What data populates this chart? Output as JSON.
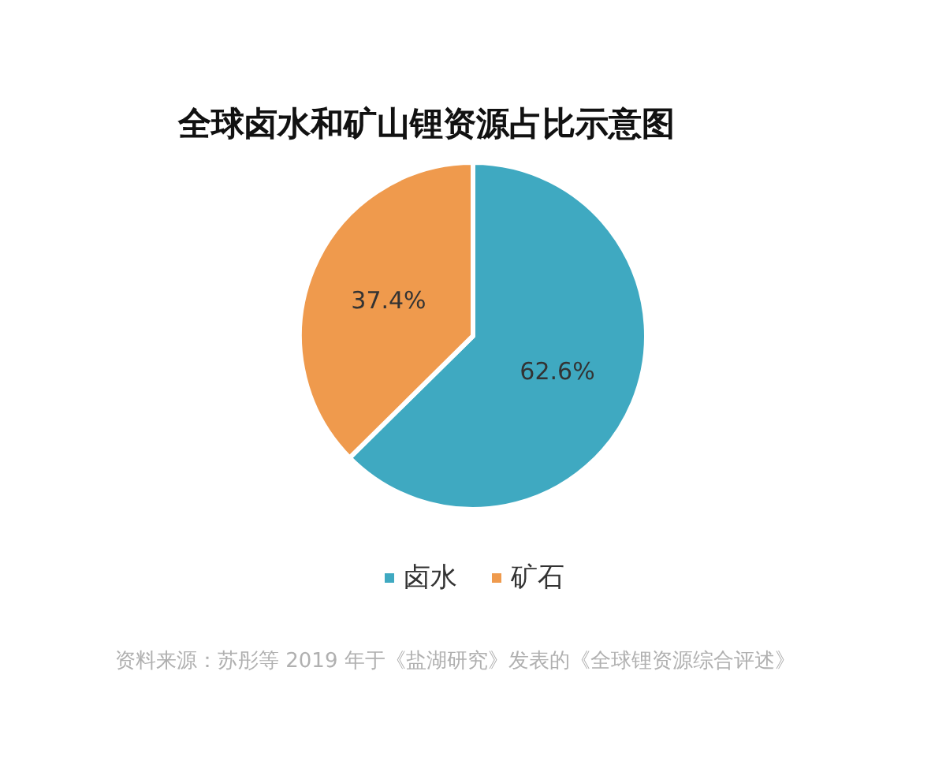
{
  "chart_data": {
    "type": "pie",
    "title": "全球卤水和矿山锂资源占比示意图",
    "categories": [
      "卤水",
      "矿石"
    ],
    "values": [
      62.6,
      37.4
    ],
    "colors": [
      "#3fa9c1",
      "#ef9a4d"
    ],
    "value_labels": [
      "62.6%",
      "37.4%"
    ],
    "legend": "bottom",
    "annotations": [
      "资料来源：苏彤等 2019 年于《盐湖研究》发表的《全球锂资源综合评述》"
    ]
  }
}
